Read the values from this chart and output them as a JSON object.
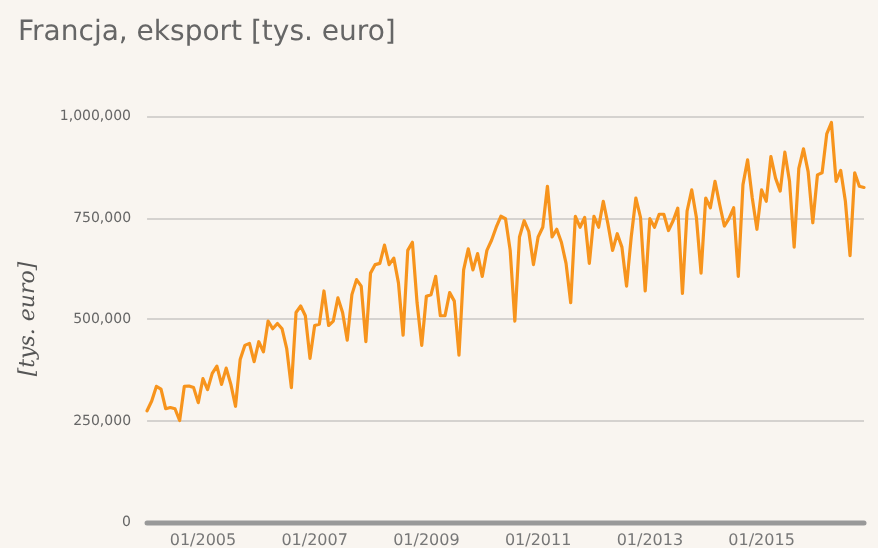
{
  "chart_data": {
    "type": "line",
    "title": "Francja, eksport [tys. euro]",
    "ylabel": "[tys. euro]",
    "categories": [
      null,
      null,
      null,
      null,
      null,
      null,
      null,
      null,
      null,
      null,
      null,
      null,
      "01/2005",
      null,
      null,
      null,
      null,
      null,
      null,
      null,
      null,
      null,
      null,
      null,
      null,
      null,
      null,
      null,
      null,
      null,
      null,
      null,
      null,
      null,
      null,
      null,
      "01/2007",
      null,
      null,
      null,
      null,
      null,
      null,
      null,
      null,
      null,
      null,
      null,
      null,
      null,
      null,
      null,
      null,
      null,
      null,
      null,
      null,
      null,
      null,
      null,
      "01/2009",
      null,
      null,
      null,
      null,
      null,
      null,
      null,
      null,
      null,
      null,
      null,
      null,
      null,
      null,
      null,
      null,
      null,
      null,
      null,
      null,
      null,
      null,
      null,
      "01/2011",
      null,
      null,
      null,
      null,
      null,
      null,
      null,
      null,
      null,
      null,
      null,
      null,
      null,
      null,
      null,
      null,
      null,
      null,
      null,
      null,
      null,
      null,
      null,
      "01/2013",
      null,
      null,
      null,
      null,
      null,
      null,
      null,
      null,
      null,
      null,
      null,
      null,
      null,
      null,
      null,
      null,
      null,
      null,
      null,
      null,
      null,
      null,
      null,
      "01/2015",
      null,
      null,
      null,
      null,
      null,
      null,
      null,
      null,
      null,
      null,
      null,
      null,
      null,
      null,
      null,
      null,
      null,
      null,
      null,
      null,
      null,
      null
    ],
    "series": [
      {
        "color": "#f7941d",
        "values": [
          274000,
          298000,
          334000,
          327000,
          279000,
          282000,
          279000,
          250000,
          334000,
          335000,
          331000,
          294000,
          353000,
          326000,
          366000,
          384000,
          339000,
          379000,
          339000,
          285000,
          400000,
          435000,
          440000,
          395000,
          444000,
          419000,
          495000,
          476000,
          489000,
          476000,
          427000,
          331000,
          516000,
          532000,
          508000,
          403000,
          484000,
          487000,
          569000,
          484000,
          495000,
          552000,
          516000,
          448000,
          560000,
          597000,
          581000,
          444000,
          613000,
          634000,
          637000,
          682000,
          634000,
          650000,
          589000,
          460000,
          669000,
          689000,
          540000,
          435000,
          556000,
          560000,
          605000,
          508000,
          508000,
          565000,
          544000,
          411000,
          621000,
          673000,
          621000,
          661000,
          605000,
          669000,
          694000,
          726000,
          753000,
          747000,
          669000,
          495000,
          702000,
          742000,
          715000,
          634000,
          702000,
          726000,
          827000,
          702000,
          721000,
          689000,
          637000,
          540000,
          753000,
          726000,
          750000,
          637000,
          753000,
          726000,
          790000,
          734000,
          669000,
          710000,
          677000,
          581000,
          702000,
          798000,
          750000,
          569000,
          747000,
          726000,
          758000,
          758000,
          718000,
          742000,
          773000,
          563000,
          766000,
          818000,
          750000,
          613000,
          798000,
          774000,
          839000,
          782000,
          729000,
          747000,
          774000,
          605000,
          831000,
          892000,
          798000,
          721000,
          818000,
          790000,
          900000,
          847000,
          815000,
          911000,
          839000,
          677000,
          871000,
          919000,
          863000,
          737000,
          855000,
          860000,
          956000,
          984000,
          839000,
          866000,
          790000,
          656000,
          860000,
          827000,
          824000
        ]
      }
    ],
    "ylim": [
      0,
      1000000
    ],
    "yticks": [
      {
        "value": 0,
        "label": "0"
      },
      {
        "value": 250000,
        "label": "250,000"
      },
      {
        "value": 500000,
        "label": "500,000"
      },
      {
        "value": 750000,
        "label": "750,000"
      },
      {
        "value": 1000000,
        "label": "1,000,000"
      }
    ],
    "grid": "y",
    "marker": "none",
    "line_style": "solid"
  }
}
